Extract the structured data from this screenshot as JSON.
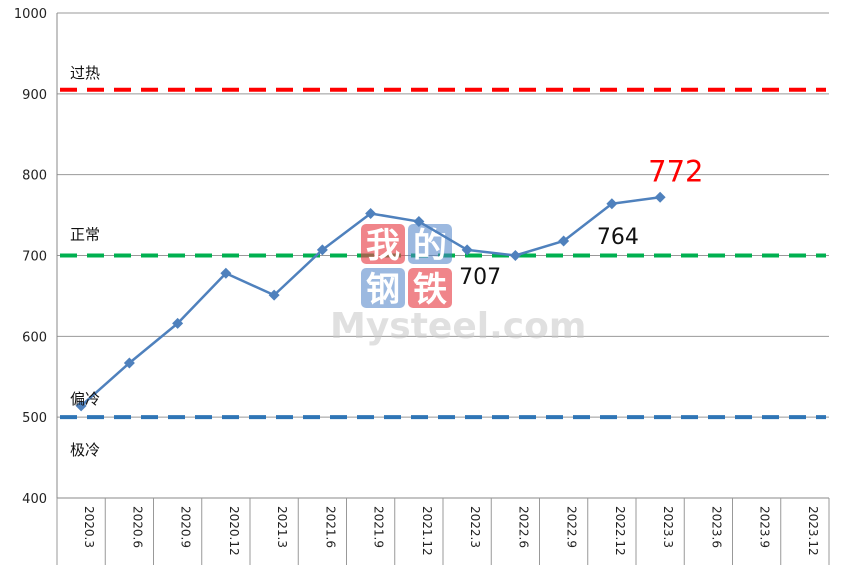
{
  "chart_data": {
    "type": "line",
    "categories": [
      "2020.3",
      "2020.6",
      "2020.9",
      "2020.12",
      "2021.3",
      "2021.6",
      "2021.9",
      "2021.12",
      "2022.3",
      "2022.6",
      "2022.9",
      "2022.12",
      "2023.3",
      "2023.6",
      "2023.9",
      "2023.12"
    ],
    "series": [
      {
        "values": [
          514,
          567,
          616,
          678,
          651,
          707,
          752,
          742,
          707,
          700,
          718,
          764,
          772,
          null,
          null,
          null
        ],
        "color": "#4f81bd",
        "marker": "diamond"
      }
    ],
    "ylim": [
      400,
      1000
    ],
    "yticks": [
      400,
      500,
      600,
      700,
      800,
      900,
      1000
    ],
    "grid": "horizontal",
    "reference_lines": [
      {
        "label": "过热",
        "value": 905,
        "color": "#ff0000",
        "style": "dashed"
      },
      {
        "label": "正常",
        "value": 700,
        "color": "#00b050",
        "style": "dashed"
      },
      {
        "label": "偏冷",
        "value": 500,
        "color": "#2e75b6",
        "style": "dashed"
      }
    ],
    "zone_labels": [
      "过热",
      "正常",
      "偏冷",
      "极冷"
    ],
    "annotations": [
      {
        "category": "2022.3",
        "text": "707",
        "color": "#111111"
      },
      {
        "category": "2022.12",
        "text": "764",
        "color": "#111111"
      },
      {
        "category": "2023.3",
        "text": "772",
        "color": "#ff0000"
      }
    ]
  },
  "watermark": {
    "cjk": [
      "我",
      "的",
      "钢",
      "铁"
    ],
    "text": "Mysteel.com",
    "colors": [
      "#e8434b",
      "#4a7fc7"
    ]
  }
}
